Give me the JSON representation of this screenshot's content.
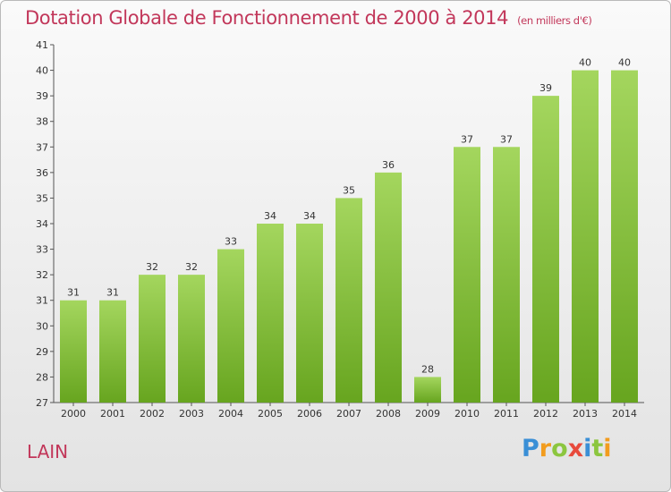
{
  "header": {
    "title": "Dotation Globale de Fonctionnement de 2000 à 2014",
    "unit_note": "(en milliers d'€)"
  },
  "commune": "LAIN",
  "logo": {
    "letters": [
      "P",
      "r",
      "o",
      "x",
      "i",
      "t",
      "i"
    ],
    "colors": [
      "#3a8fd6",
      "#f29c1e",
      "#8cc63f",
      "#e84a3c",
      "#3a8fd6",
      "#8cc63f",
      "#f29c1e"
    ]
  },
  "colors": {
    "bar_light": "#a4d65e",
    "bar_dark": "#67a51f",
    "title": "#c2375a"
  },
  "chart_data": {
    "type": "bar",
    "categories": [
      "2000",
      "2001",
      "2002",
      "2003",
      "2004",
      "2005",
      "2006",
      "2007",
      "2008",
      "2009",
      "2010",
      "2011",
      "2012",
      "2013",
      "2014"
    ],
    "values": [
      31,
      31,
      32,
      32,
      33,
      34,
      34,
      35,
      36,
      28,
      37,
      37,
      39,
      40,
      40
    ],
    "ylim": [
      27,
      41
    ],
    "yticks": [
      27,
      28,
      29,
      30,
      31,
      32,
      33,
      34,
      35,
      36,
      37,
      38,
      39,
      40,
      41
    ],
    "grid": false,
    "xlabel": "",
    "ylabel": ""
  }
}
